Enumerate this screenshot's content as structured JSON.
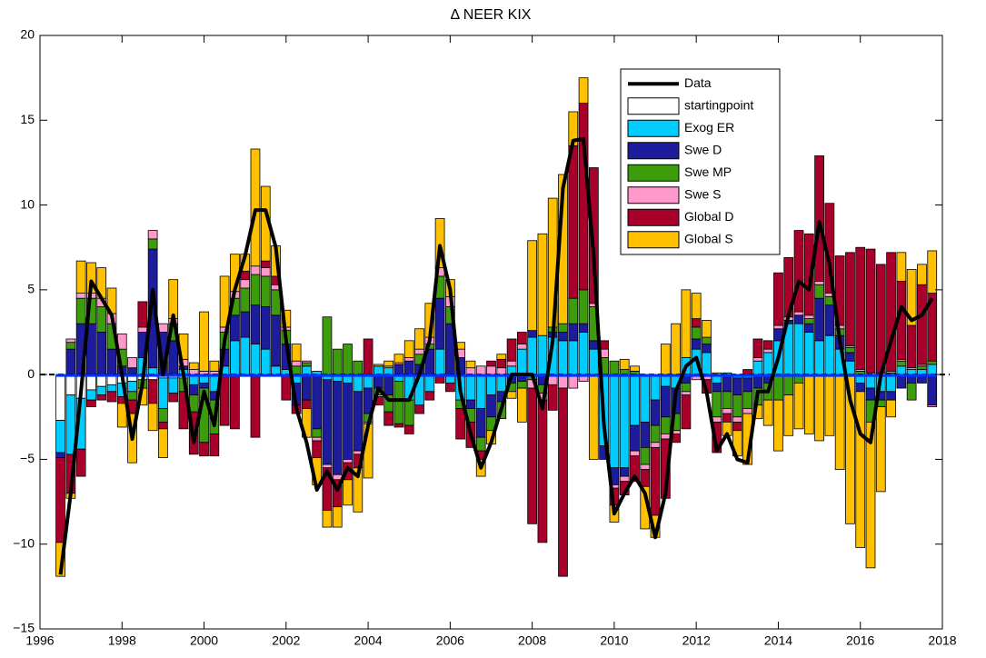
{
  "chart_data": {
    "type": "bar",
    "stacked": true,
    "title": "Δ NEER KIX",
    "x": [
      1996.5,
      1996.75,
      1997,
      1997.25,
      1997.5,
      1997.75,
      1998,
      1998.25,
      1998.5,
      1998.75,
      1999,
      1999.25,
      1999.5,
      1999.75,
      2000,
      2000.25,
      2000.5,
      2000.75,
      2001,
      2001.25,
      2001.5,
      2001.75,
      2002,
      2002.25,
      2002.5,
      2002.75,
      2003,
      2003.25,
      2003.5,
      2003.75,
      2004,
      2004.25,
      2004.5,
      2004.75,
      2005,
      2005.25,
      2005.5,
      2005.75,
      2006,
      2006.25,
      2006.5,
      2006.75,
      2007,
      2007.25,
      2007.5,
      2007.75,
      2008,
      2008.25,
      2008.5,
      2008.75,
      2009,
      2009.25,
      2009.5,
      2009.75,
      2010,
      2010.25,
      2010.5,
      2010.75,
      2011,
      2011.25,
      2011.5,
      2011.75,
      2012,
      2012.25,
      2012.5,
      2012.75,
      2013,
      2013.25,
      2013.5,
      2013.75,
      2014,
      2014.25,
      2014.5,
      2014.75,
      2015,
      2015.25,
      2015.5,
      2015.75,
      2016,
      2016.25,
      2016.5,
      2016.75,
      2017,
      2017.25,
      2017.5,
      2017.75
    ],
    "series": [
      {
        "name": "Data",
        "type": "line",
        "color": "#000000",
        "values": [
          -11.8,
          -7,
          -1,
          5.5,
          4.5,
          3.5,
          0,
          -3.8,
          -0.5,
          5,
          0,
          3.5,
          0,
          -4,
          -1,
          -3,
          2,
          5,
          7,
          9.7,
          9.7,
          7.5,
          2,
          -2,
          -4,
          -6.8,
          -5.7,
          -6.8,
          -5.5,
          -6,
          -3,
          -0.8,
          -1.5,
          -1.5,
          -1.5,
          0,
          2,
          7.6,
          5,
          -1,
          -3.5,
          -5.5,
          -4,
          -2,
          0,
          0,
          0,
          -2,
          2,
          11,
          13.8,
          13.9,
          7,
          -3,
          -8.2,
          -7,
          -6,
          -7,
          -9.6,
          -7,
          -1,
          0.5,
          1,
          -1,
          -4.5,
          -3.5,
          -5,
          -5.2,
          -1,
          -1,
          1,
          3.5,
          5.5,
          5,
          9,
          6.5,
          2,
          -1.5,
          -3.5,
          -4,
          0,
          2,
          4,
          3.2,
          3.5,
          4.5
        ]
      },
      {
        "name": "startingpoint",
        "type": "bar",
        "color": "#ffffff",
        "values": [
          -2.7,
          -1.2,
          -1.4,
          -0.9,
          -0.7,
          -0.6,
          -0.5,
          -0.4,
          -0.3,
          -0.3,
          -0.2,
          -0.2,
          -0.2,
          -0.1,
          0,
          0,
          0,
          0,
          0,
          0,
          0,
          0,
          0,
          0,
          0,
          0,
          0,
          0,
          0,
          0,
          0,
          0,
          0,
          0,
          0,
          0,
          0,
          0,
          0,
          0,
          0,
          0,
          0,
          0,
          0,
          0,
          0,
          0,
          0,
          0,
          0,
          0,
          0,
          0,
          0,
          0,
          0,
          0,
          0,
          0,
          0,
          0,
          0,
          0,
          0,
          0,
          0,
          0,
          0,
          0,
          0,
          0,
          0,
          0,
          0,
          0,
          0,
          0,
          0,
          0,
          0,
          0,
          0,
          0,
          0,
          0
        ]
      },
      {
        "name": "Exog ER",
        "type": "bar",
        "color": "#00ccff",
        "values": [
          -1.9,
          -3.5,
          -3,
          -0.6,
          -0.5,
          -0.4,
          -0.8,
          -0.6,
          1,
          0.4,
          -1.8,
          -0.9,
          0.3,
          -0.5,
          -0.5,
          -1,
          0.5,
          2,
          2.2,
          1.8,
          1.5,
          0.5,
          0.3,
          -0.5,
          0.5,
          0.2,
          -0.3,
          -0.4,
          -0.5,
          -1,
          -0.8,
          0.5,
          0.4,
          -0.4,
          -1.5,
          -1.8,
          -1,
          1.5,
          -0.5,
          -1.5,
          -1.5,
          -2,
          -1.2,
          -1,
          0.5,
          1.5,
          2.2,
          2.3,
          2.2,
          2,
          2,
          2.5,
          1.5,
          -4.2,
          -5.5,
          -5.5,
          -3,
          -2.8,
          -1.5,
          -0.7,
          -0.8,
          1,
          1.5,
          1.3,
          -0.5,
          0.1,
          -0.2,
          -0.2,
          0.8,
          1.3,
          2,
          3,
          3,
          2.5,
          2,
          2.3,
          1.5,
          0.8,
          -0.5,
          -0.8,
          -1,
          -1,
          0.5,
          0.3,
          0.3,
          0.6
        ]
      },
      {
        "name": "Swe D",
        "type": "bar",
        "color": "#1c1c9c",
        "values": [
          -0.3,
          1.5,
          3,
          3,
          2.5,
          1.5,
          0.5,
          0.4,
          1.5,
          7,
          2.5,
          2,
          0.2,
          -0.6,
          -0.3,
          -0.5,
          1,
          1.5,
          1.5,
          2.3,
          2.5,
          3,
          1.5,
          -1.3,
          -1.5,
          -3.2,
          -5,
          -5.5,
          -4.5,
          -3.5,
          -1.5,
          -0.8,
          -1.2,
          0.6,
          0.8,
          0.6,
          1.5,
          3,
          3,
          1,
          -0.5,
          -1.7,
          -1.3,
          -0.6,
          -0.5,
          -0.4,
          0.4,
          -0.6,
          0.3,
          0.5,
          1,
          0.5,
          0.5,
          -0.8,
          -1,
          -0.5,
          -1.5,
          -1.5,
          -1.5,
          -1.8,
          -1.5,
          -0.5,
          0.6,
          0.5,
          -0.5,
          -1,
          -1,
          -0.8,
          -0.8,
          -0.5,
          0.7,
          0.2,
          0.5,
          0.5,
          2.5,
          1.8,
          0.8,
          0.5,
          -0.5,
          -0.7,
          -0.5,
          -0.5,
          -0.8,
          -0.5,
          -0.5,
          -1.8
        ]
      },
      {
        "name": "Swe MP",
        "type": "bar",
        "color": "#3c9c0c",
        "values": [
          0,
          0.4,
          1.5,
          1.5,
          1.5,
          1.5,
          1,
          -0.5,
          -0.5,
          0.6,
          -0.8,
          1,
          -0.8,
          -1,
          -3.2,
          -2,
          1,
          1,
          1.4,
          1.8,
          1.8,
          1.5,
          0.8,
          0.5,
          0.2,
          -0.5,
          3.4,
          1.5,
          1.8,
          0.8,
          -0.5,
          -0.4,
          -1,
          -2.5,
          -1.5,
          0.6,
          0.3,
          1.3,
          1,
          -0.5,
          -0.8,
          -0.8,
          -0.8,
          -1,
          -0.5,
          -0.4,
          -0.3,
          -0.5,
          0.3,
          0.5,
          1.5,
          2,
          2,
          1,
          0.8,
          0.3,
          0.2,
          -1,
          -1,
          -1,
          -1,
          -0.5,
          0.7,
          0.4,
          -1.5,
          -1,
          -1.3,
          -1,
          -1,
          -1,
          -1.5,
          -1.2,
          -0.5,
          0.3,
          0.8,
          0.5,
          0.4,
          0.3,
          0.2,
          -1.3,
          -0.4,
          0.1,
          0.3,
          -1,
          0.2,
          0.2
        ]
      },
      {
        "name": "Swe S",
        "type": "bar",
        "color": "#ff99cc",
        "values": [
          0,
          0.2,
          0.3,
          0.3,
          0.5,
          0.6,
          0.9,
          0.6,
          0.3,
          0.5,
          0.5,
          0.3,
          0.4,
          0.3,
          0.2,
          0.2,
          0.3,
          0.4,
          0.5,
          0.5,
          0.5,
          0.3,
          0.2,
          0.3,
          0.1,
          -0.2,
          -0.2,
          -0.3,
          -0.2,
          -0.2,
          -0.1,
          -0.1,
          0.1,
          0.1,
          0.2,
          0.3,
          0.4,
          0.5,
          0.6,
          0.5,
          0.4,
          0.5,
          0.5,
          0.4,
          0.3,
          0.3,
          -0.5,
          -0.4,
          -0.6,
          -0.8,
          -0.8,
          -0.4,
          0.2,
          0.5,
          -0.2,
          -0.3,
          -0.3,
          -0.3,
          -0.3,
          -0.3,
          -0.2,
          -0.2,
          -0.3,
          -0.3,
          -0.3,
          -0.3,
          -0.3,
          -0.3,
          0.2,
          0.2,
          0.2,
          0.2,
          0.2,
          0.2,
          0.2,
          0.2,
          0.2,
          0.1,
          0.1,
          0.1,
          0.1,
          0.1,
          0.1,
          0.1,
          0.1,
          -0.1
        ]
      },
      {
        "name": "Global D",
        "type": "bar",
        "color": "#a8002a",
        "values": [
          -5,
          -2.3,
          -1.6,
          -0.4,
          -0.3,
          -0.6,
          -0.4,
          -0.8,
          1.5,
          -1.4,
          -0.4,
          -0.5,
          -2.2,
          -2.5,
          -0.8,
          -1.3,
          -3,
          -3.2,
          0.5,
          -3.7,
          0.4,
          0.5,
          -1.5,
          -0.5,
          -0.5,
          -1,
          -2.5,
          -1.6,
          -1,
          -0.8,
          2.1,
          -0.5,
          -0.8,
          -0.2,
          -0.5,
          -0.5,
          -0.5,
          -0.5,
          -0.5,
          -1.8,
          -1.5,
          -0.5,
          0.3,
          0.5,
          1.3,
          0.7,
          -8,
          -8.4,
          -1.5,
          -11.1,
          9,
          11,
          8,
          0.5,
          -1,
          -0.8,
          -1.5,
          -1,
          -4,
          -3.5,
          -0.5,
          -2,
          0.5,
          -0.8,
          -1.8,
          -0.5,
          -0.5,
          0.3,
          1.1,
          0.5,
          3.1,
          3.5,
          4.8,
          4.8,
          7.4,
          5.3,
          4.1,
          5.5,
          7.2,
          7.3,
          6.4,
          7,
          4.6,
          2.5,
          4.7,
          4
        ]
      },
      {
        "name": "Global S",
        "type": "bar",
        "color": "#ffc000",
        "values": [
          -2,
          -0.3,
          1.9,
          1.8,
          1.8,
          1.5,
          -1.4,
          -2.9,
          -1,
          -1.6,
          -1.7,
          2.3,
          1.5,
          0.4,
          3.5,
          0.6,
          3,
          2.2,
          1,
          6.9,
          4.4,
          1.8,
          1,
          1,
          -1.7,
          -1.6,
          -1,
          -1.2,
          -1.5,
          -2.6,
          -3.2,
          0.1,
          0.3,
          0.5,
          1,
          1.2,
          2,
          2.9,
          1,
          0.4,
          0.4,
          -1,
          -0.8,
          0.3,
          -0.4,
          -2,
          5.3,
          6,
          7.6,
          8.8,
          2,
          1.5,
          -5,
          0,
          -1,
          0.6,
          0.3,
          -2.5,
          -1.3,
          1.8,
          3,
          4,
          1.5,
          1,
          0.1,
          -0.8,
          -1.5,
          -3,
          -0.8,
          -1.5,
          -3,
          -2.4,
          -2.7,
          -3.5,
          -3.9,
          -3.6,
          -5.6,
          -8.8,
          -9.2,
          -8.6,
          -5,
          -1,
          1.7,
          3.3,
          1.2,
          2.5
        ]
      }
    ],
    "xlim": [
      1996,
      2018
    ],
    "xticks": [
      1996,
      1998,
      2000,
      2002,
      2004,
      2006,
      2008,
      2010,
      2012,
      2014,
      2016,
      2018
    ],
    "ylim": [
      -15,
      20
    ],
    "yticks": [
      {
        "value": -15,
        "label": "−15"
      },
      {
        "value": -10,
        "label": "−10"
      },
      {
        "value": -5,
        "label": "−5"
      },
      0,
      5,
      10,
      15,
      20
    ],
    "legend": "upper right"
  }
}
